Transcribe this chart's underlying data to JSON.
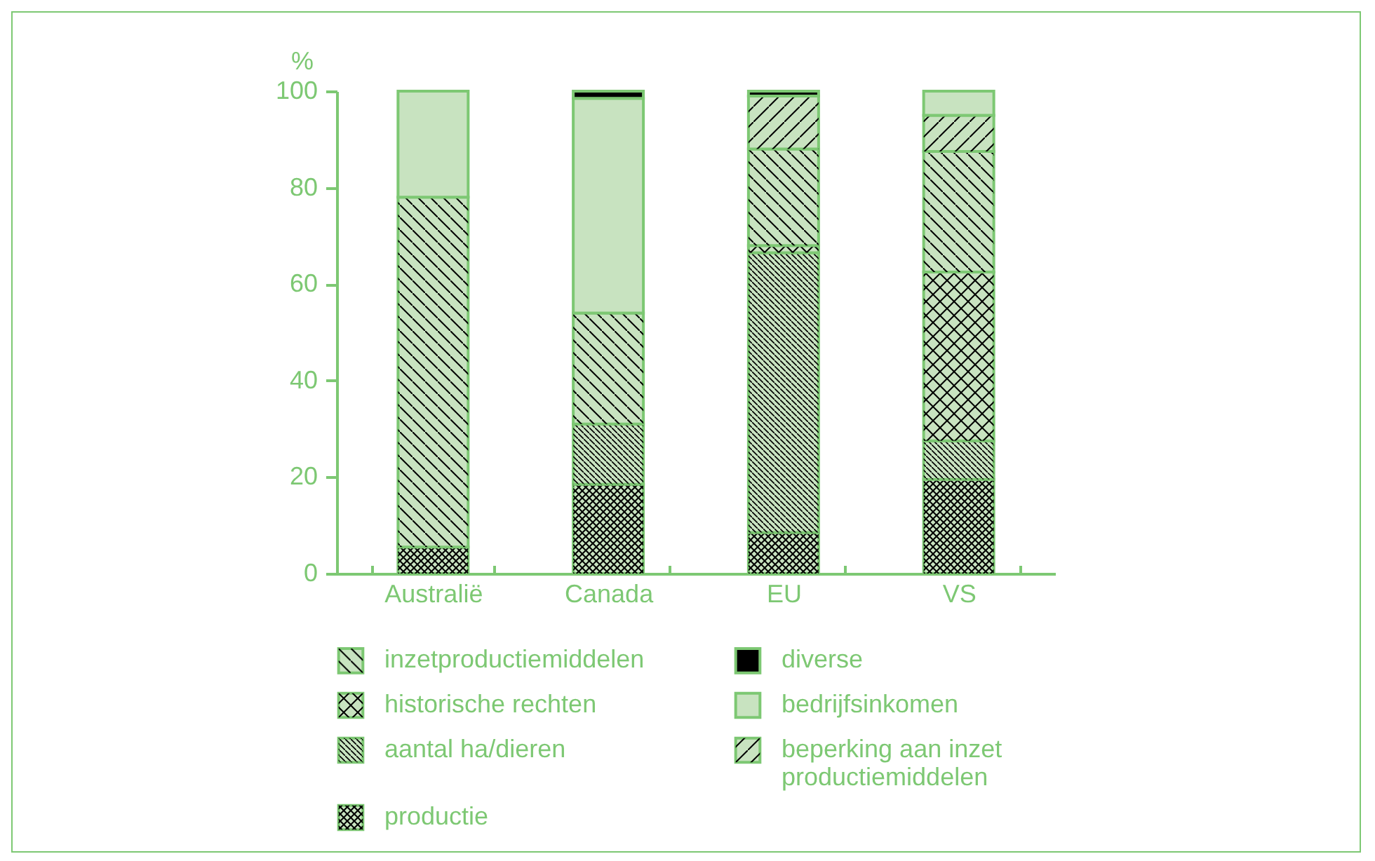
{
  "chart_data": {
    "type": "bar",
    "stacked": true,
    "ylabel": "%",
    "categories": [
      "Australië",
      "Canada",
      "EU",
      "VS"
    ],
    "series": [
      {
        "name": "productie",
        "color": "#c8e3c0",
        "values": [
          5.5,
          18.5,
          8.5,
          19.5
        ]
      },
      {
        "name": "aantal ha/dieren",
        "color": "#c8e3c0",
        "values": [
          null,
          12.5,
          58,
          8
        ]
      },
      {
        "name": "historische rechten",
        "color": "#c8e3c0",
        "values": [
          null,
          null,
          1.5,
          35
        ]
      },
      {
        "name": "inzetproductiemiddelen",
        "color": "#c8e3c0",
        "values": [
          72.5,
          23,
          20,
          25
        ]
      },
      {
        "name": "beperking aan inzet productiemiddelen",
        "color": "#c8e3c0",
        "values": [
          null,
          null,
          11,
          7.5
        ]
      },
      {
        "name": "bedrijfsinkomen",
        "color": "#c8e3c0",
        "values": [
          22,
          44.5,
          null,
          5
        ]
      },
      {
        "name": "diverse",
        "color": "#000000",
        "values": [
          null,
          1.5,
          1,
          null
        ]
      }
    ],
    "ylim": [
      0,
      100
    ],
    "yticks": [
      0,
      20,
      40,
      60,
      80,
      100
    ],
    "grid": false,
    "legend": "bottom"
  }
}
